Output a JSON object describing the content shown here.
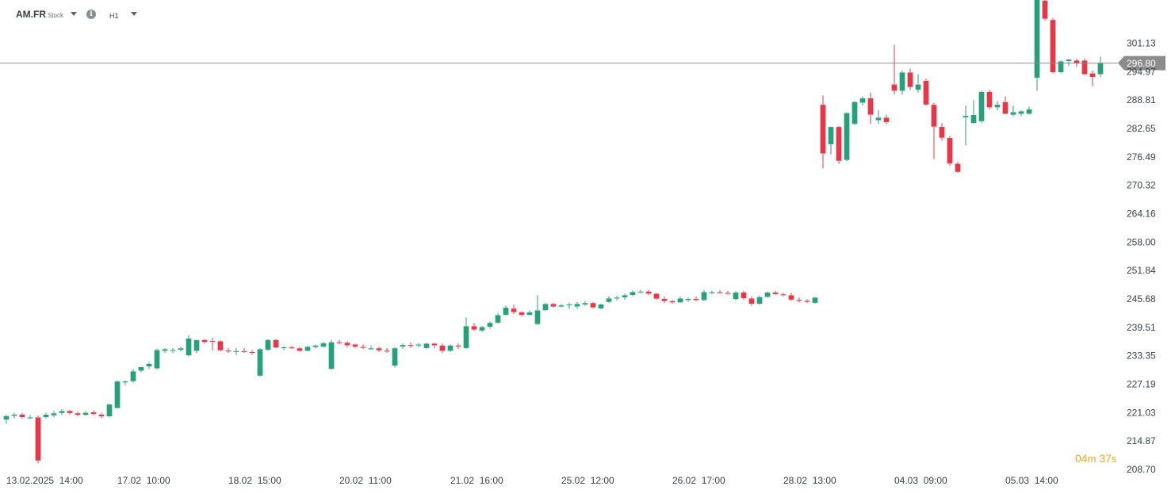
{
  "toolbar": {
    "symbol": "AM.FR",
    "instrument_type": "Stock",
    "info_icon": "info-icon",
    "timeframe": "H1",
    "dropdown_icon": "chevron-down-icon"
  },
  "timer": {
    "minutes": "04",
    "minutes_unit": "m",
    "seconds": "37",
    "seconds_unit": "s"
  },
  "colors": {
    "up": "#26a17b",
    "down": "#e83646",
    "price_line": "#8c8c8c",
    "price_label_bg": "#8c8c8c",
    "timer": "#f5a623"
  },
  "chart_data": {
    "type": "candlestick",
    "title": "",
    "xlabel": "",
    "ylabel": "",
    "ylim": [
      208.7,
      312.0
    ],
    "grid": false,
    "current_price": "296.80",
    "y_ticks": [
      "301.13",
      "294.97",
      "288.81",
      "282.65",
      "276.49",
      "270.32",
      "264.16",
      "258.00",
      "251.84",
      "245.68",
      "239.51",
      "233.35",
      "227.19",
      "221.03",
      "214.87",
      "208.70"
    ],
    "x_ticks": [
      {
        "date": "13.02.2025",
        "time": "14:00",
        "index": 0
      },
      {
        "date": "17.02",
        "time": "10:00",
        "index": 14
      },
      {
        "date": "18.02",
        "time": "15:00",
        "index": 28
      },
      {
        "date": "20.02",
        "time": "11:00",
        "index": 42
      },
      {
        "date": "21.02",
        "time": "16:00",
        "index": 56
      },
      {
        "date": "25.02",
        "time": "12:00",
        "index": 70
      },
      {
        "date": "26.02",
        "time": "17:00",
        "index": 84
      },
      {
        "date": "28.02",
        "time": "13:00",
        "index": 98
      },
      {
        "date": "04.03",
        "time": "09:00",
        "index": 112
      },
      {
        "date": "05.03",
        "time": "14:00",
        "index": 126
      }
    ],
    "candles": [
      [
        219.5,
        220.6,
        218.6,
        220.3
      ],
      [
        220.3,
        221.0,
        219.8,
        220.6
      ],
      [
        220.6,
        221.0,
        219.7,
        220.0
      ],
      [
        220.0,
        220.5,
        219.6,
        220.0
      ],
      [
        220.0,
        220.4,
        210.0,
        210.6
      ],
      [
        220.0,
        221.0,
        219.7,
        220.6
      ],
      [
        220.4,
        221.4,
        220.0,
        220.9
      ],
      [
        220.9,
        221.8,
        220.5,
        221.4
      ],
      [
        221.4,
        221.6,
        220.6,
        220.9
      ],
      [
        220.9,
        221.2,
        220.2,
        220.5
      ],
      [
        220.5,
        221.4,
        220.3,
        221.0
      ],
      [
        221.1,
        221.5,
        220.4,
        220.7
      ],
      [
        220.6,
        221.0,
        219.8,
        220.2
      ],
      [
        220.2,
        223.0,
        220.0,
        222.8
      ],
      [
        222.0,
        228.0,
        221.9,
        227.8
      ],
      [
        227.6,
        228.0,
        227.0,
        227.8
      ],
      [
        227.8,
        230.5,
        227.5,
        230.0
      ],
      [
        230.1,
        231.0,
        229.8,
        230.9
      ],
      [
        231.0,
        232.0,
        230.5,
        231.6
      ],
      [
        230.6,
        234.9,
        230.4,
        234.6
      ],
      [
        234.4,
        235.0,
        234.0,
        234.8
      ],
      [
        234.6,
        235.0,
        234.0,
        234.6
      ],
      [
        234.6,
        235.3,
        234.3,
        235.0
      ],
      [
        233.4,
        237.8,
        233.2,
        237.1
      ],
      [
        234.4,
        236.8,
        233.9,
        236.8
      ],
      [
        236.8,
        237.0,
        236.0,
        236.3
      ],
      [
        236.6,
        237.2,
        234.5,
        236.5
      ],
      [
        236.5,
        236.8,
        234.3,
        234.5
      ],
      [
        234.5,
        235.0,
        234.0,
        234.3
      ],
      [
        234.2,
        235.0,
        233.5,
        234.4
      ],
      [
        234.4,
        235.0,
        234.0,
        234.2
      ],
      [
        234.2,
        234.6,
        233.6,
        234.0
      ],
      [
        229.0,
        235.0,
        228.8,
        234.8
      ],
      [
        234.6,
        237.0,
        234.4,
        236.8
      ],
      [
        236.8,
        237.0,
        235.0,
        235.1
      ],
      [
        235.1,
        235.4,
        234.6,
        235.2
      ],
      [
        235.2,
        235.5,
        234.8,
        235.0
      ],
      [
        235.0,
        235.3,
        234.2,
        234.4
      ],
      [
        234.4,
        235.5,
        234.3,
        235.3
      ],
      [
        235.2,
        235.8,
        234.9,
        235.6
      ],
      [
        235.3,
        236.4,
        235.1,
        236.1
      ],
      [
        230.5,
        236.8,
        230.2,
        236.3
      ],
      [
        236.3,
        236.8,
        235.8,
        236.2
      ],
      [
        236.2,
        236.5,
        235.2,
        235.6
      ],
      [
        235.8,
        236.0,
        235.0,
        235.3
      ],
      [
        235.3,
        235.8,
        234.8,
        235.2
      ],
      [
        235.0,
        235.6,
        234.6,
        235.0
      ],
      [
        235.0,
        235.3,
        234.2,
        234.5
      ],
      [
        234.5,
        235.0,
        234.0,
        234.3
      ],
      [
        231.2,
        235.3,
        230.8,
        235.0
      ],
      [
        235.3,
        236.0,
        234.8,
        235.7
      ],
      [
        235.7,
        236.2,
        235.0,
        235.5
      ],
      [
        235.6,
        236.1,
        235.2,
        235.8
      ],
      [
        235.0,
        236.2,
        234.8,
        236.0
      ],
      [
        236.0,
        236.2,
        235.0,
        235.6
      ],
      [
        235.6,
        236.0,
        234.0,
        234.4
      ],
      [
        234.4,
        235.8,
        234.2,
        235.6
      ],
      [
        235.6,
        236.0,
        234.8,
        235.3
      ],
      [
        235.0,
        241.6,
        234.8,
        239.8
      ],
      [
        239.8,
        240.4,
        238.8,
        239.0
      ],
      [
        238.8,
        239.8,
        238.5,
        239.6
      ],
      [
        239.6,
        240.8,
        239.2,
        240.5
      ],
      [
        240.5,
        242.6,
        240.3,
        242.2
      ],
      [
        242.2,
        244.2,
        242.0,
        243.8
      ],
      [
        243.6,
        244.4,
        242.4,
        242.8
      ],
      [
        242.8,
        243.0,
        241.8,
        242.2
      ],
      [
        242.2,
        243.2,
        242.0,
        242.8
      ],
      [
        240.2,
        246.5,
        240.0,
        243.2
      ],
      [
        243.2,
        244.8,
        243.0,
        244.6
      ],
      [
        244.6,
        244.8,
        243.8,
        244.0
      ],
      [
        244.0,
        244.6,
        243.8,
        244.3
      ],
      [
        244.3,
        244.9,
        243.5,
        244.5
      ],
      [
        244.0,
        245.0,
        243.6,
        244.6
      ],
      [
        244.4,
        245.2,
        244.2,
        244.8
      ],
      [
        244.8,
        245.0,
        243.6,
        243.8
      ],
      [
        243.6,
        244.6,
        243.4,
        244.5
      ],
      [
        245.0,
        246.2,
        244.8,
        245.8
      ],
      [
        245.8,
        246.4,
        245.3,
        246.0
      ],
      [
        246.0,
        246.8,
        245.5,
        246.5
      ],
      [
        246.5,
        247.5,
        246.2,
        247.2
      ],
      [
        247.2,
        247.6,
        246.9,
        247.3
      ],
      [
        247.3,
        247.6,
        246.5,
        246.8
      ],
      [
        246.8,
        247.0,
        245.5,
        245.7
      ],
      [
        245.7,
        246.2,
        244.8,
        245.2
      ],
      [
        245.2,
        245.5,
        244.6,
        244.9
      ],
      [
        244.9,
        246.2,
        244.8,
        245.8
      ],
      [
        245.4,
        246.0,
        245.0,
        245.7
      ],
      [
        245.7,
        246.2,
        245.2,
        245.4
      ],
      [
        245.4,
        247.6,
        245.2,
        247.2
      ],
      [
        247.0,
        247.4,
        246.7,
        247.2
      ],
      [
        247.2,
        247.6,
        246.8,
        247.0
      ],
      [
        247.0,
        247.4,
        246.6,
        246.8
      ],
      [
        245.6,
        247.3,
        245.4,
        247.1
      ],
      [
        247.1,
        247.4,
        245.5,
        245.8
      ],
      [
        245.8,
        246.2,
        244.2,
        244.6
      ],
      [
        244.6,
        246.4,
        244.4,
        246.1
      ],
      [
        246.1,
        247.3,
        245.9,
        247.1
      ],
      [
        247.1,
        247.4,
        246.5,
        246.7
      ],
      [
        246.7,
        247.0,
        246.2,
        246.5
      ],
      [
        246.5,
        247.0,
        245.2,
        245.5
      ],
      [
        245.5,
        246.0,
        244.9,
        245.3
      ],
      [
        245.3,
        245.6,
        244.8,
        245.0
      ],
      [
        244.8,
        246.1,
        244.6,
        246.0
      ],
      [
        287.8,
        289.8,
        274.0,
        277.2
      ],
      [
        279.2,
        283.0,
        277.0,
        283.0
      ],
      [
        283.0,
        283.2,
        275.0,
        275.6
      ],
      [
        275.8,
        286.2,
        275.6,
        286.0
      ],
      [
        283.6,
        288.6,
        283.4,
        288.4
      ],
      [
        288.2,
        289.6,
        287.6,
        289.2
      ],
      [
        289.2,
        290.4,
        283.6,
        285.6
      ],
      [
        284.4,
        286.6,
        283.6,
        285.0
      ],
      [
        285.0,
        285.6,
        283.6,
        284.0
      ],
      [
        292.2,
        300.8,
        290.0,
        290.8
      ],
      [
        290.8,
        295.2,
        290.0,
        294.8
      ],
      [
        294.8,
        295.6,
        291.0,
        291.6
      ],
      [
        291.0,
        294.4,
        290.4,
        292.2
      ],
      [
        293.0,
        293.4,
        287.6,
        287.8
      ],
      [
        287.8,
        288.2,
        276.0,
        283.0
      ],
      [
        283.0,
        283.8,
        280.0,
        280.6
      ],
      [
        280.6,
        281.0,
        274.6,
        275.0
      ],
      [
        275.0,
        275.4,
        273.0,
        273.2
      ],
      [
        285.0,
        287.6,
        279.0,
        285.4
      ],
      [
        283.8,
        288.8,
        283.6,
        285.6
      ],
      [
        284.2,
        290.8,
        283.8,
        290.6
      ],
      [
        290.6,
        291.0,
        286.8,
        287.2
      ],
      [
        287.2,
        288.6,
        286.6,
        287.8
      ],
      [
        288.4,
        289.6,
        285.8,
        285.8
      ],
      [
        285.6,
        287.6,
        285.2,
        286.2
      ],
      [
        285.8,
        286.6,
        285.4,
        286.4
      ],
      [
        285.8,
        287.4,
        285.6,
        286.8
      ],
      [
        293.6,
        311.6,
        290.8,
        310.8
      ],
      [
        310.4,
        310.8,
        306.0,
        306.4
      ],
      [
        306.2,
        306.6,
        294.6,
        294.8
      ],
      [
        294.8,
        297.4,
        294.6,
        297.2
      ],
      [
        297.2,
        297.8,
        296.2,
        297.6
      ],
      [
        297.4,
        297.8,
        296.0,
        296.8
      ],
      [
        297.4,
        297.8,
        294.2,
        294.4
      ],
      [
        294.6,
        295.2,
        291.8,
        293.8
      ],
      [
        294.4,
        298.2,
        293.8,
        296.8
      ]
    ]
  }
}
